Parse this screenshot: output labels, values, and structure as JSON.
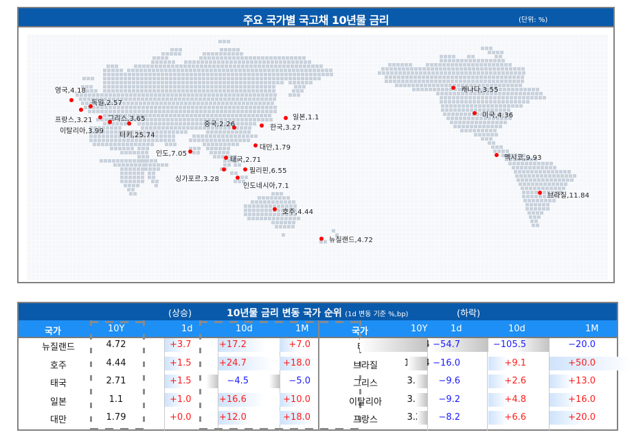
{
  "map_panel": {
    "title": "주요 국가별 국고채 10년물 금리",
    "unit": "(단위: %)",
    "markers": [
      {
        "label": "영국,4.18",
        "country": "영국",
        "value": 4.18,
        "dot": [
          104,
          146
        ],
        "text": [
          80,
          123
        ]
      },
      {
        "label": "독일,2.57",
        "country": "독일",
        "value": 2.57,
        "dot": [
          132,
          155
        ],
        "text": [
          133,
          141
        ]
      },
      {
        "label": "프랑스,3.21",
        "country": "프랑스",
        "value": 3.21,
        "dot": [
          118,
          160
        ],
        "text": [
          80,
          166
        ]
      },
      {
        "label": "그리스,3.65",
        "country": "그리스",
        "value": 3.65,
        "dot": [
          146,
          171
        ],
        "text": [
          157,
          164
        ]
      },
      {
        "label": "이탈리아,3.99",
        "country": "이탈리아",
        "value": 3.99,
        "dot": [
          160,
          178
        ],
        "text": [
          87,
          182
        ]
      },
      {
        "label": "터키,25.74",
        "country": "터키",
        "value": 25.74,
        "dot": [
          188,
          180
        ],
        "text": [
          174,
          188
        ]
      },
      {
        "label": "중국,2.26",
        "country": "중국",
        "value": 2.26,
        "dot": [
          341,
          186
        ],
        "text": [
          297,
          172
        ]
      },
      {
        "label": "한국,3.27",
        "country": "한국",
        "value": 3.27,
        "dot": [
          381,
          183
        ],
        "text": [
          393,
          177
        ]
      },
      {
        "label": "일본,1.1",
        "country": "일본",
        "value": 1.1,
        "dot": [
          416,
          172
        ],
        "text": [
          426,
          162
        ]
      },
      {
        "label": "대만,1.79",
        "country": "대만",
        "value": 1.79,
        "dot": [
          372,
          212
        ],
        "text": [
          378,
          206
        ]
      },
      {
        "label": "인도,7.05",
        "country": "인도",
        "value": 7.05,
        "dot": [
          277,
          221
        ],
        "text": [
          227,
          215
        ]
      },
      {
        "label": "태국,2.71",
        "country": "태국",
        "value": 2.71,
        "dot": [
          329,
          230
        ],
        "text": [
          335,
          224
        ]
      },
      {
        "label": "싱가포르,3.28",
        "country": "싱가포르",
        "value": 3.28,
        "dot": [
          326,
          247
        ],
        "text": [
          255,
          252
        ]
      },
      {
        "label": "필리핀,6.55",
        "country": "필리핀",
        "value": 6.55,
        "dot": [
          357,
          247
        ],
        "text": [
          363,
          240
        ]
      },
      {
        "label": "인도네시아,7.1",
        "country": "인도네시아",
        "value": 7.1,
        "dot": [
          346,
          259
        ],
        "text": [
          354,
          262
        ]
      },
      {
        "label": "호주,4.44",
        "country": "호주",
        "value": 4.44,
        "dot": [
          400,
          305
        ],
        "text": [
          411,
          300
        ]
      },
      {
        "label": "뉴질랜드,4.72",
        "country": "뉴질랜드",
        "value": 4.72,
        "dot": [
          468,
          348
        ],
        "text": [
          479,
          341
        ]
      },
      {
        "label": "캐나다,3.55",
        "country": "캐나다",
        "value": 3.55,
        "dot": [
          660,
          128
        ],
        "text": [
          671,
          122
        ]
      },
      {
        "label": "미국,4.36",
        "country": "미국",
        "value": 4.36,
        "dot": [
          691,
          165
        ],
        "text": [
          702,
          159
        ]
      },
      {
        "label": "멕시코,9.93",
        "country": "멕시코",
        "value": 9.93,
        "dot": [
          723,
          226
        ],
        "text": [
          734,
          221
        ]
      },
      {
        "label": "브라질,11.84",
        "country": "브라질",
        "value": 11.84,
        "dot": [
          786,
          281
        ],
        "text": [
          797,
          276
        ]
      }
    ]
  },
  "ranking_panel": {
    "title": "10년물 금리 변동 국가 순위",
    "title_note": "(1d 변동 기준 %,bp)",
    "rise_label": "(상승)",
    "fall_label": "(하락)",
    "columns": {
      "country": "국가",
      "y10": "10Y",
      "d1": "1d",
      "d10": "10d",
      "m1": "1M"
    },
    "rising": [
      {
        "country": "뉴질랜드",
        "y10": "4.72",
        "d1": "+3.7",
        "d10": "+17.2",
        "m1": "+7.0"
      },
      {
        "country": "호주",
        "y10": "4.44",
        "d1": "+1.5",
        "d10": "+24.7",
        "m1": "+18.0"
      },
      {
        "country": "태국",
        "y10": "2.71",
        "d1": "+1.5",
        "d10": "−4.5",
        "m1": "−5.0"
      },
      {
        "country": "일본",
        "y10": "1.1",
        "d1": "+1.0",
        "d10": "+16.6",
        "m1": "+10.0"
      },
      {
        "country": "대만",
        "y10": "1.79",
        "d1": "+0.0",
        "d10": "+12.0",
        "m1": "+18.0"
      }
    ],
    "falling": [
      {
        "country": "터키",
        "y10": "25.74",
        "d1": "−54.7",
        "d10": "−105.5",
        "m1": "−20.0"
      },
      {
        "country": "브라질",
        "y10": "11.84",
        "d1": "−16.0",
        "d10": "+9.1",
        "m1": "+50.0"
      },
      {
        "country": "그리스",
        "y10": "3.65",
        "d1": "−9.6",
        "d10": "+2.6",
        "m1": "+13.0"
      },
      {
        "country": "이탈리아",
        "y10": "3.99",
        "d1": "−9.2",
        "d10": "+4.8",
        "m1": "+16.0"
      },
      {
        "country": "프랑스",
        "y10": "3.21",
        "d1": "−8.2",
        "d10": "+6.6",
        "m1": "+20.0"
      }
    ]
  },
  "colors": {
    "title_bar": "#0a5aab",
    "header_bar": "#1e8ff5",
    "positive": "#ff1a1a",
    "negative": "#1a1aff",
    "marker": "#ff0000",
    "land": "#c9d2dc"
  }
}
